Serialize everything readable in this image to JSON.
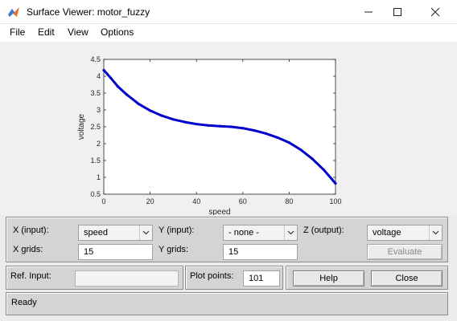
{
  "window": {
    "title": "Surface Viewer: motor_fuzzy",
    "minimize_icon": "minimize-icon",
    "maximize_icon": "maximize-icon",
    "close_icon": "close-icon"
  },
  "menu": {
    "items": [
      {
        "label": "File"
      },
      {
        "label": "Edit"
      },
      {
        "label": "View"
      },
      {
        "label": "Options"
      }
    ]
  },
  "chart_data": {
    "type": "line",
    "xlabel": "speed",
    "ylabel": "voltage",
    "xlim": [
      0,
      100
    ],
    "ylim": [
      0.5,
      4.5
    ],
    "xticks": [
      "0",
      "20",
      "40",
      "60",
      "80",
      "100"
    ],
    "yticks": [
      "0.5",
      "1",
      "1.5",
      "2",
      "2.5",
      "3",
      "3.5",
      "4",
      "4.5"
    ],
    "line_color": "#0000cc",
    "series": [
      {
        "x": [
          0,
          3,
          6,
          10,
          15,
          20,
          25,
          30,
          35,
          40,
          45,
          50,
          55,
          60,
          65,
          70,
          75,
          80,
          85,
          90,
          95,
          100
        ],
        "y": [
          4.18,
          3.95,
          3.7,
          3.45,
          3.18,
          2.98,
          2.83,
          2.72,
          2.64,
          2.58,
          2.54,
          2.52,
          2.5,
          2.46,
          2.39,
          2.3,
          2.18,
          2.03,
          1.82,
          1.55,
          1.22,
          0.82
        ]
      }
    ]
  },
  "controls": {
    "x_input_label": "X (input):",
    "x_input_value": "speed",
    "y_input_label": "Y (input):",
    "y_input_value": "- none -",
    "z_output_label": "Z (output):",
    "z_output_value": "voltage",
    "x_grids_label": "X grids:",
    "x_grids_value": "15",
    "y_grids_label": "Y grids:",
    "y_grids_value": "15",
    "evaluate_label": "Evaluate",
    "ref_input_label": "Ref. Input:",
    "ref_input_value": "",
    "plot_points_label": "Plot points:",
    "plot_points_value": "101",
    "help_label": "Help",
    "close_label": "Close"
  },
  "status": {
    "text": "Ready"
  }
}
